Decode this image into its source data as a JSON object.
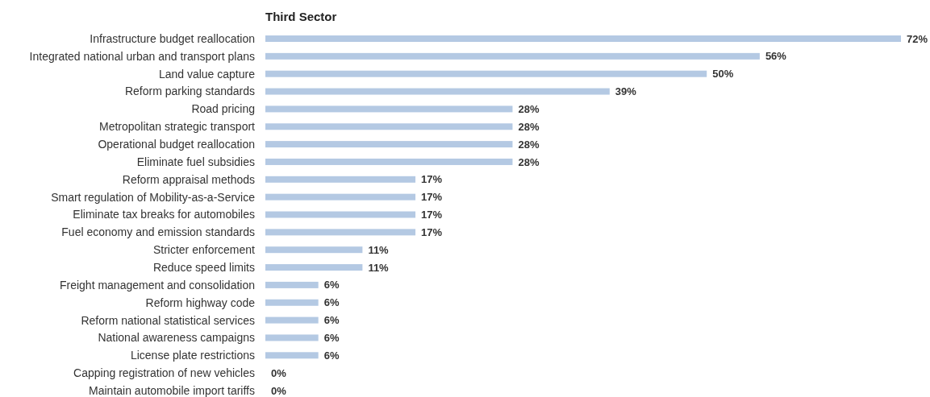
{
  "chart_data": {
    "type": "bar",
    "orientation": "horizontal",
    "title": "Third Sector",
    "categories": [
      "Infrastructure budget reallocation",
      "Integrated national urban and transport plans",
      "Land value capture",
      "Reform parking standards",
      "Road pricing",
      "Metropolitan strategic transport",
      "Operational budget reallocation",
      "Eliminate fuel subsidies",
      "Reform appraisal methods",
      "Smart regulation of Mobility-as-a-Service",
      "Eliminate tax breaks for automobiles",
      "Fuel economy and emission standards",
      "Stricter enforcement",
      "Reduce speed limits",
      "Freight management and consolidation",
      "Reform highway code",
      "Reform national statistical services",
      "National awareness campaigns",
      "License plate restrictions",
      "Capping registration of new vehicles",
      "Maintain automobile import tariffs"
    ],
    "values": [
      72,
      56,
      50,
      39,
      28,
      28,
      28,
      28,
      17,
      17,
      17,
      17,
      11,
      11,
      6,
      6,
      6,
      6,
      6,
      0,
      0
    ],
    "value_labels": [
      "72%",
      "56%",
      "50%",
      "39%",
      "28%",
      "28%",
      "28%",
      "28%",
      "17%",
      "17%",
      "17%",
      "17%",
      "11%",
      "11%",
      "6%",
      "6%",
      "6%",
      "6%",
      "6%",
      "0%",
      "0%"
    ],
    "color": "#b4c9e3"
  }
}
